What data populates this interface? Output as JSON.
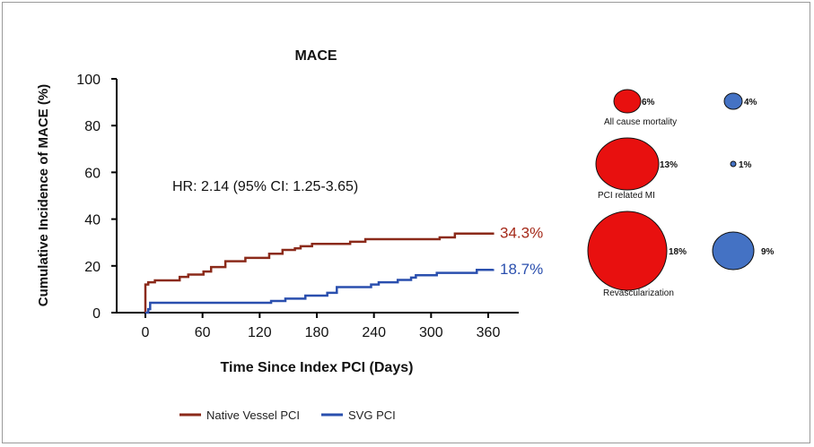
{
  "chart_data": {
    "type": "line",
    "title": "MACE",
    "xlabel": "Time Since Index PCI (Days)",
    "ylabel": "Cumulative Incidence of MACE (%)",
    "xlim": [
      0,
      360
    ],
    "ylim": [
      0,
      100
    ],
    "xticks": [
      0,
      60,
      120,
      180,
      240,
      300,
      360
    ],
    "yticks": [
      0,
      20,
      40,
      60,
      80,
      100
    ],
    "grid": false,
    "legend_position": "bottom",
    "annotation": "HR: 2.14 (95% CI: 1.25-3.65)",
    "series": [
      {
        "name": "Native Vessel PCI",
        "color": "#8b2a1a",
        "end_label": "34.3%",
        "step": true,
        "x": [
          0,
          0,
          3,
          10,
          36,
          45,
          61,
          69,
          84,
          105,
          130,
          144,
          157,
          163,
          175,
          215,
          231,
          309,
          325,
          365
        ],
        "y": [
          0,
          12,
          13,
          13.8,
          15.3,
          16.3,
          17.6,
          19.5,
          22,
          23.4,
          25.2,
          26.8,
          27.5,
          28.4,
          29.4,
          30.3,
          31.4,
          32.2,
          33.8,
          34.3
        ]
      },
      {
        "name": "SVG PCI",
        "color": "#2a4fae",
        "end_label": "18.7%",
        "step": true,
        "x": [
          0,
          3,
          5,
          132,
          147,
          168,
          191,
          201,
          237,
          245,
          265,
          279,
          284,
          306,
          348,
          365
        ],
        "y": [
          0,
          1.5,
          4.2,
          5,
          6,
          7.3,
          8.5,
          10.9,
          12,
          13,
          14,
          15,
          16,
          17,
          18.3,
          18.7
        ]
      }
    ],
    "bubbles": {
      "native_color": "#e8100f",
      "svg_color": "#4472c4",
      "rows": [
        {
          "label": "All cause mortality",
          "native": 6,
          "native_label": "6%",
          "svg": 4,
          "svg_label": "4%"
        },
        {
          "label": "PCI related MI",
          "native": 13,
          "native_label": "13%",
          "svg": 1,
          "svg_label": "1%"
        },
        {
          "label": "Revascularization",
          "native": 18,
          "native_label": "18%",
          "svg": 9,
          "svg_label": "9%"
        }
      ]
    }
  }
}
